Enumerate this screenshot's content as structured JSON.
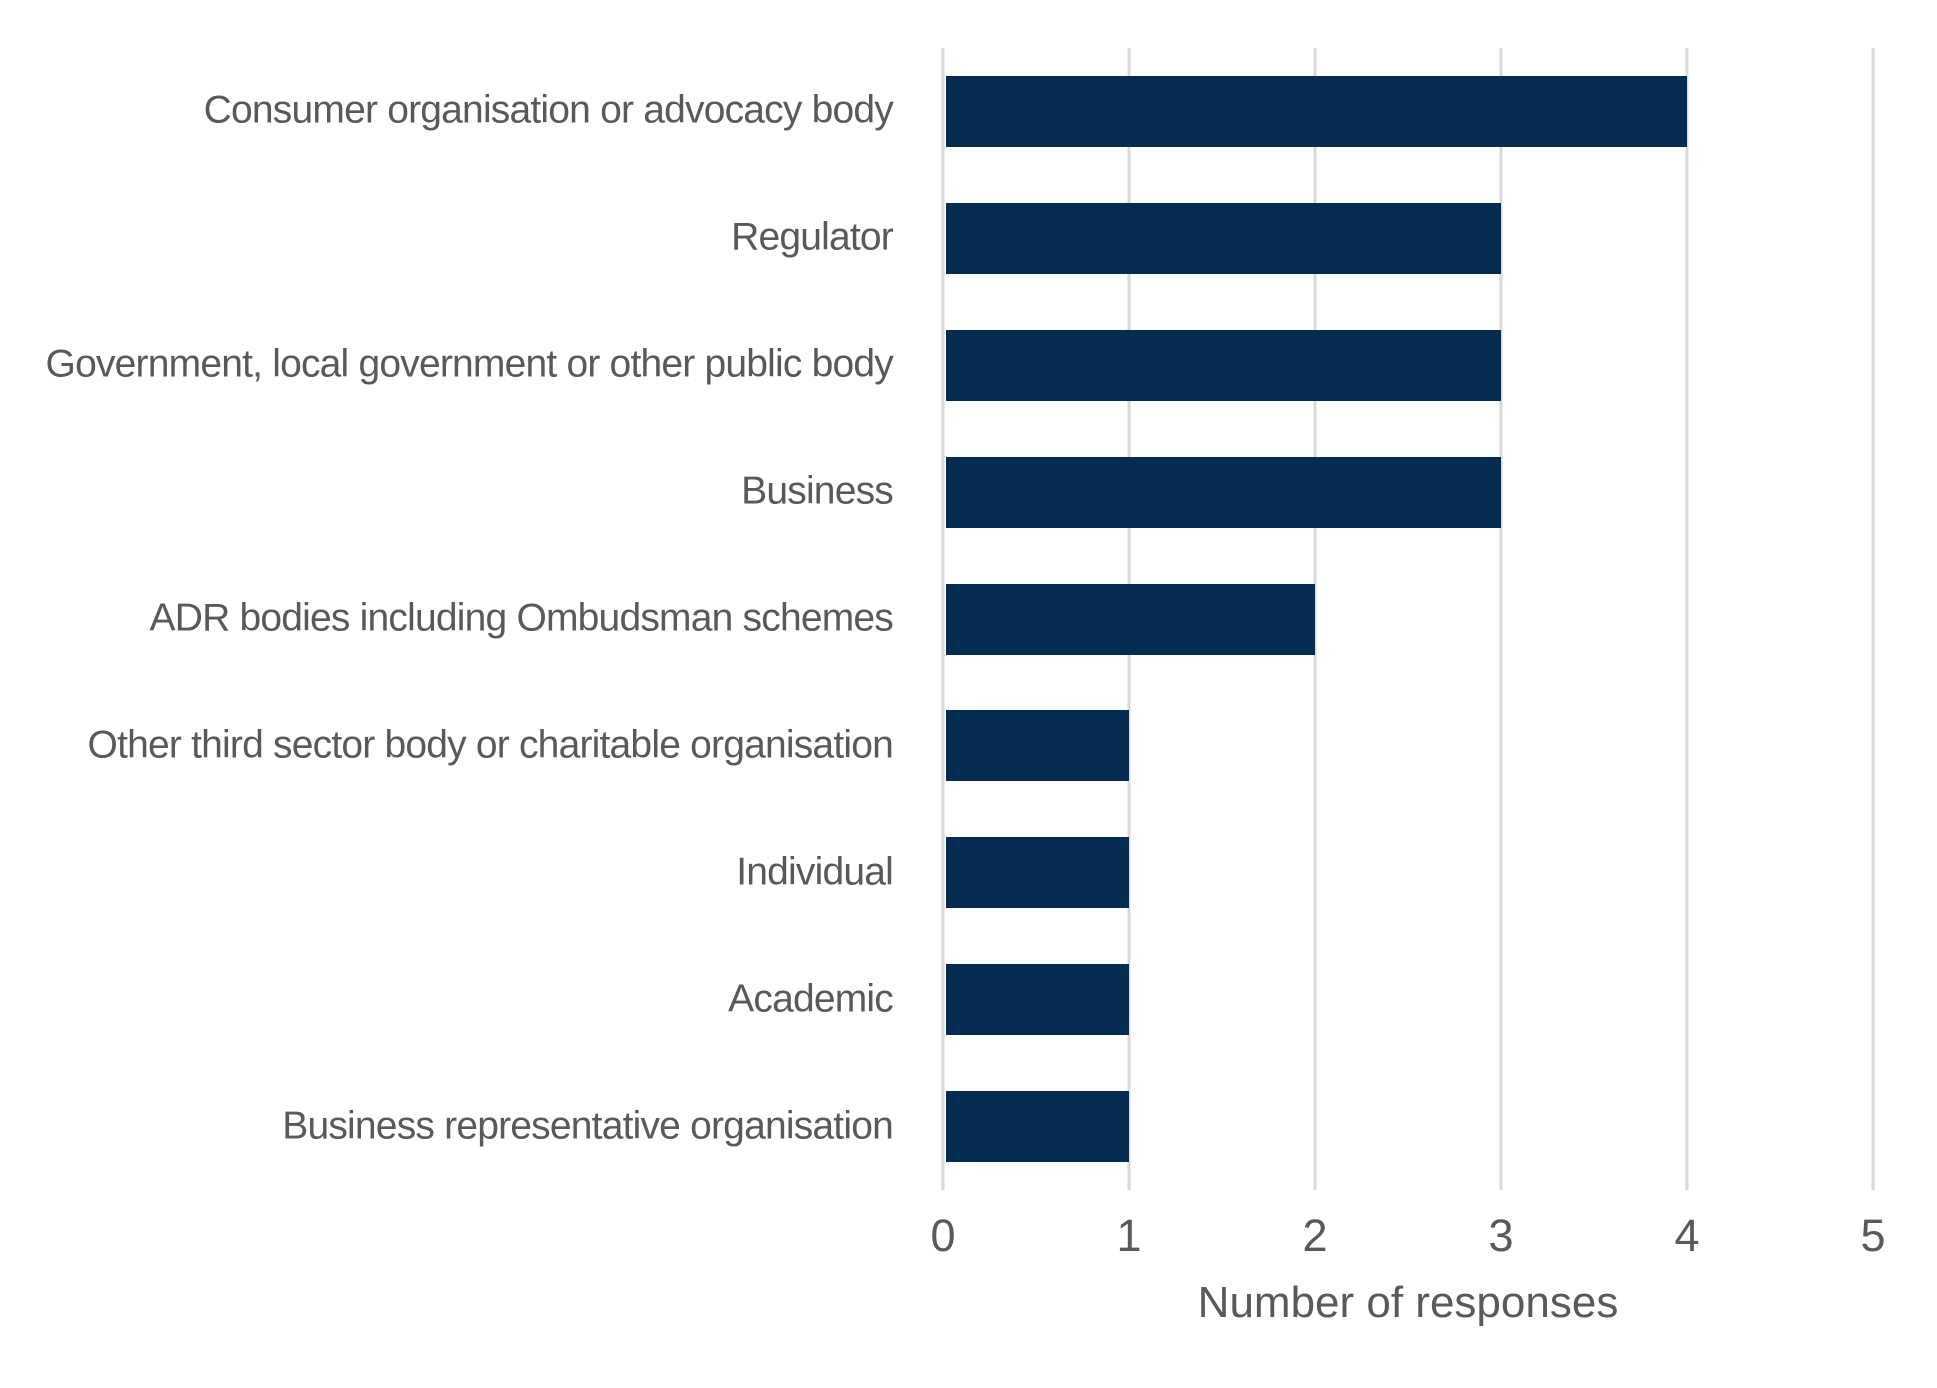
{
  "chart_data": {
    "type": "bar",
    "orientation": "horizontal",
    "title": "",
    "xlabel": "Number of responses",
    "ylabel": "",
    "categories": [
      "Consumer organisation or advocacy body",
      "Regulator",
      "Government, local government or other public body",
      "Business",
      "ADR bodies including Ombudsman schemes",
      "Other third sector body or charitable organisation",
      "Individual",
      "Academic",
      "Business representative organisation"
    ],
    "values": [
      4,
      3,
      3,
      3,
      2,
      1,
      1,
      1,
      1
    ],
    "xlim": [
      0,
      5
    ],
    "xticks": [
      0,
      1,
      2,
      3,
      4,
      5
    ],
    "grid": "vertical-gridlines",
    "legend": "none",
    "colors": {
      "bar": "#032C50",
      "gridline": "#D9D9D9",
      "text": "#595959",
      "background": "#FFFFFF"
    }
  }
}
